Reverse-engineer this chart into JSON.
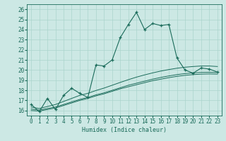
{
  "xlabel": "Humidex (Indice chaleur)",
  "ylabel": "",
  "bg_color": "#cce8e4",
  "line_color": "#1a6b5a",
  "grid_color": "#aad4cc",
  "xlim": [
    -0.5,
    23.5
  ],
  "ylim": [
    15.5,
    26.5
  ],
  "xticks": [
    0,
    1,
    2,
    3,
    4,
    5,
    6,
    7,
    8,
    9,
    10,
    11,
    12,
    13,
    14,
    15,
    16,
    17,
    18,
    19,
    20,
    21,
    22,
    23
  ],
  "yticks": [
    16,
    17,
    18,
    19,
    20,
    21,
    22,
    23,
    24,
    25,
    26
  ],
  "main_line": [
    16.6,
    15.9,
    17.2,
    16.1,
    17.5,
    18.2,
    17.7,
    17.3,
    20.5,
    20.4,
    21.0,
    23.2,
    24.5,
    25.7,
    24.0,
    24.6,
    24.4,
    24.5,
    21.2,
    20.0,
    19.7,
    20.2,
    20.1,
    19.8
  ],
  "line2": [
    16.0,
    15.95,
    16.1,
    16.25,
    16.5,
    16.75,
    17.0,
    17.2,
    17.45,
    17.65,
    17.9,
    18.15,
    18.35,
    18.55,
    18.75,
    18.95,
    19.1,
    19.25,
    19.38,
    19.48,
    19.55,
    19.6,
    19.62,
    19.6
  ],
  "line3": [
    16.15,
    16.05,
    16.2,
    16.35,
    16.6,
    16.85,
    17.1,
    17.3,
    17.55,
    17.75,
    18.0,
    18.25,
    18.5,
    18.7,
    18.9,
    19.1,
    19.27,
    19.42,
    19.55,
    19.65,
    19.72,
    19.77,
    19.78,
    19.76
  ],
  "line4": [
    16.35,
    16.2,
    16.4,
    16.6,
    16.9,
    17.2,
    17.5,
    17.7,
    17.98,
    18.22,
    18.5,
    18.78,
    19.05,
    19.3,
    19.52,
    19.72,
    19.9,
    20.05,
    20.18,
    20.28,
    20.35,
    20.4,
    20.4,
    20.35
  ]
}
